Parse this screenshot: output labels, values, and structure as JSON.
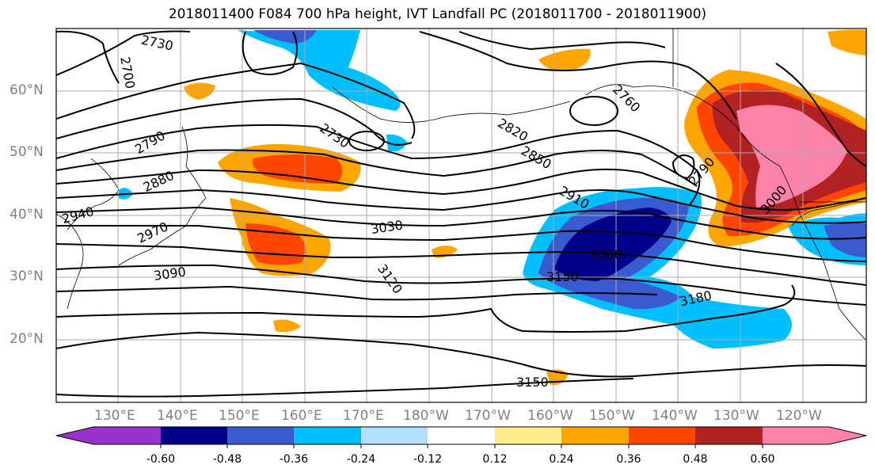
{
  "title": "2018011400 F084 700 hPa height, IVT Landfall PC (2018011700 - 2018011900)",
  "lat_labels": [
    "60°N",
    "50°N",
    "40°N",
    "30°N",
    "20°N"
  ],
  "lon_labels": [
    "130°E",
    "140°E",
    "150°E",
    "160°E",
    "170°E",
    "180°W",
    "170°W",
    "160°W",
    "150°W",
    "140°W",
    "130°W",
    "120°W"
  ],
  "contour_labels": [
    "2730",
    "2700",
    "2790",
    "2880",
    "2940",
    "2970",
    "3090",
    "2730",
    "3030",
    "3120",
    "2820",
    "2850",
    "2910",
    "3060",
    "3150",
    "3180",
    "2760",
    "2790",
    "3000",
    "3150"
  ],
  "colorbar": {
    "tick_labels": [
      "-0.60",
      "-0.48",
      "-0.36",
      "-0.24",
      "-0.12",
      "0.12",
      "0.24",
      "0.36",
      "0.48",
      "0.60"
    ],
    "colors": [
      "#9932cc",
      "#00008b",
      "#3a5bd0",
      "#00bfff",
      "#b0e0ff",
      "#ffffff",
      "#ffec8b",
      "#ffa500",
      "#ff4500",
      "#b22222",
      "#ff82ab"
    ]
  }
}
